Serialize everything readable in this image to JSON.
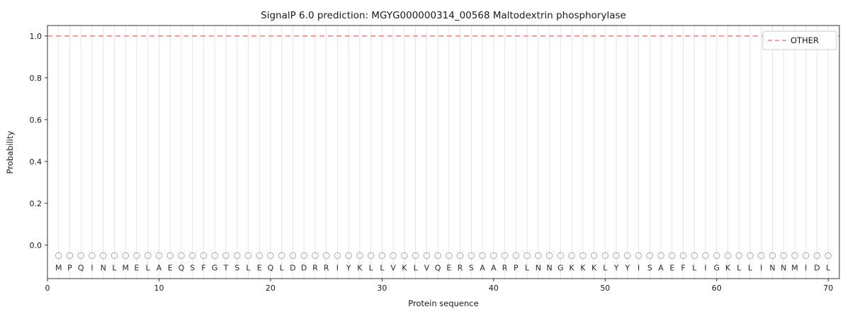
{
  "chart_data": {
    "type": "line",
    "title": "SignalP 6.0 prediction: MGYG000000314_00568 Maltodextrin phosphorylase",
    "xlabel": "Protein sequence",
    "ylabel": "Probability",
    "xlim": [
      0,
      71
    ],
    "ylim": [
      -0.16,
      1.05
    ],
    "x_ticks": [
      0,
      10,
      20,
      30,
      40,
      50,
      60,
      70
    ],
    "y_ticks": [
      0.0,
      0.2,
      0.4,
      0.6,
      0.8,
      1.0
    ],
    "grid": "vertical line per residue position",
    "legend": {
      "position": "upper right",
      "entries": [
        {
          "label": "OTHER",
          "color": "#f08080",
          "style": "dashed"
        }
      ]
    },
    "series": [
      {
        "name": "OTHER",
        "style": "dashed",
        "color": "#f08080",
        "y_constant": 1.0,
        "x_range": [
          0,
          71
        ]
      }
    ],
    "sequence": [
      "M",
      "P",
      "Q",
      "I",
      "N",
      "L",
      "M",
      "E",
      "L",
      "A",
      "E",
      "Q",
      "S",
      "F",
      "G",
      "T",
      "S",
      "L",
      "E",
      "Q",
      "L",
      "D",
      "D",
      "R",
      "R",
      "I",
      "Y",
      "K",
      "L",
      "L",
      "V",
      "K",
      "L",
      "V",
      "Q",
      "E",
      "R",
      "S",
      "A",
      "A",
      "R",
      "P",
      "L",
      "N",
      "N",
      "G",
      "K",
      "K",
      "K",
      "L",
      "Y",
      "Y",
      "I",
      "S",
      "A",
      "E",
      "F",
      "L",
      "I",
      "G",
      "K",
      "L",
      "L",
      "I",
      "N",
      "N",
      "M",
      "I",
      "D",
      "L"
    ],
    "marker_y": -0.05,
    "letter_y": -0.108,
    "colors": {
      "grid": "#e6e6e6",
      "marker": "#aeaeae",
      "letter": "#2b2b2b",
      "line": "#f08080",
      "frame": "#333333",
      "tick_label": "#1a1a1a",
      "legend_border": "#cccccc"
    }
  }
}
